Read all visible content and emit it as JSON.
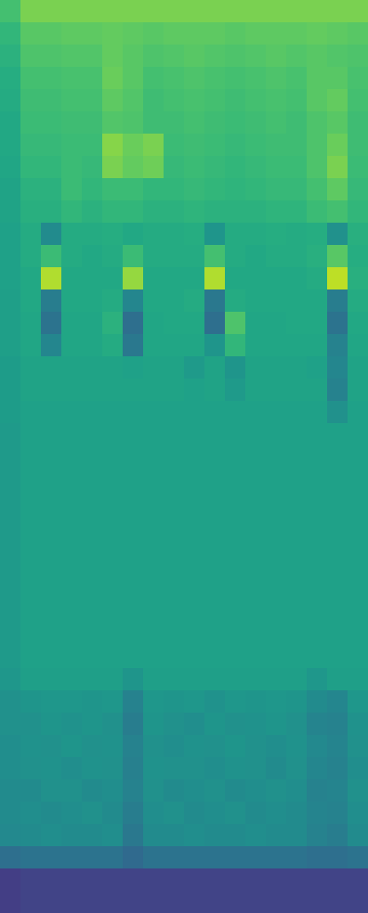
{
  "chart_data": {
    "type": "heatmap",
    "color": "viridis",
    "tick_labels": false,
    "zlim": [
      0,
      1
    ],
    "cells": [
      [
        0.7,
        0.8,
        0.8,
        0.8,
        0.8,
        0.8,
        0.8,
        0.8,
        0.8,
        0.8,
        0.8,
        0.8,
        0.8,
        0.8,
        0.8,
        0.8,
        0.8,
        0.8
      ],
      [
        0.66,
        0.74,
        0.74,
        0.75,
        0.75,
        0.76,
        0.75,
        0.74,
        0.75,
        0.75,
        0.75,
        0.74,
        0.75,
        0.75,
        0.75,
        0.76,
        0.75,
        0.74
      ],
      [
        0.64,
        0.72,
        0.72,
        0.73,
        0.73,
        0.76,
        0.74,
        0.72,
        0.73,
        0.74,
        0.73,
        0.72,
        0.73,
        0.74,
        0.73,
        0.74,
        0.73,
        0.72
      ],
      [
        0.62,
        0.7,
        0.7,
        0.71,
        0.71,
        0.77,
        0.74,
        0.7,
        0.71,
        0.72,
        0.71,
        0.7,
        0.71,
        0.72,
        0.71,
        0.74,
        0.74,
        0.71
      ],
      [
        0.61,
        0.69,
        0.69,
        0.7,
        0.7,
        0.75,
        0.73,
        0.69,
        0.7,
        0.71,
        0.7,
        0.69,
        0.7,
        0.71,
        0.7,
        0.74,
        0.76,
        0.7
      ],
      [
        0.6,
        0.68,
        0.68,
        0.69,
        0.69,
        0.73,
        0.72,
        0.69,
        0.69,
        0.7,
        0.69,
        0.68,
        0.69,
        0.7,
        0.69,
        0.72,
        0.74,
        0.69
      ],
      [
        0.6,
        0.67,
        0.67,
        0.68,
        0.68,
        0.82,
        0.77,
        0.8,
        0.68,
        0.69,
        0.68,
        0.67,
        0.68,
        0.69,
        0.69,
        0.72,
        0.77,
        0.69
      ],
      [
        0.59,
        0.66,
        0.66,
        0.68,
        0.67,
        0.8,
        0.76,
        0.78,
        0.67,
        0.68,
        0.67,
        0.66,
        0.67,
        0.68,
        0.68,
        0.72,
        0.8,
        0.68
      ],
      [
        0.58,
        0.64,
        0.64,
        0.68,
        0.66,
        0.68,
        0.68,
        0.66,
        0.66,
        0.67,
        0.66,
        0.65,
        0.66,
        0.67,
        0.67,
        0.7,
        0.75,
        0.67
      ],
      [
        0.58,
        0.63,
        0.63,
        0.66,
        0.64,
        0.66,
        0.66,
        0.64,
        0.64,
        0.65,
        0.64,
        0.64,
        0.64,
        0.65,
        0.65,
        0.68,
        0.7,
        0.66
      ],
      [
        0.57,
        0.61,
        0.48,
        0.61,
        0.61,
        0.62,
        0.6,
        0.61,
        0.61,
        0.62,
        0.52,
        0.61,
        0.61,
        0.62,
        0.61,
        0.62,
        0.5,
        0.63
      ],
      [
        0.57,
        0.61,
        0.68,
        0.61,
        0.6,
        0.61,
        0.68,
        0.61,
        0.61,
        0.61,
        0.7,
        0.61,
        0.6,
        0.61,
        0.61,
        0.63,
        0.74,
        0.62
      ],
      [
        0.57,
        0.6,
        0.88,
        0.6,
        0.6,
        0.6,
        0.84,
        0.6,
        0.6,
        0.6,
        0.88,
        0.6,
        0.6,
        0.6,
        0.6,
        0.61,
        0.9,
        0.63
      ],
      [
        0.56,
        0.6,
        0.42,
        0.6,
        0.6,
        0.61,
        0.46,
        0.6,
        0.6,
        0.61,
        0.4,
        0.61,
        0.6,
        0.6,
        0.6,
        0.6,
        0.42,
        0.61
      ],
      [
        0.56,
        0.59,
        0.38,
        0.59,
        0.59,
        0.64,
        0.36,
        0.59,
        0.6,
        0.6,
        0.36,
        0.72,
        0.59,
        0.59,
        0.6,
        0.6,
        0.38,
        0.6
      ],
      [
        0.56,
        0.59,
        0.46,
        0.59,
        0.59,
        0.61,
        0.4,
        0.59,
        0.59,
        0.59,
        0.52,
        0.66,
        0.59,
        0.59,
        0.59,
        0.59,
        0.44,
        0.59
      ],
      [
        0.55,
        0.58,
        0.58,
        0.58,
        0.58,
        0.58,
        0.57,
        0.58,
        0.58,
        0.54,
        0.58,
        0.52,
        0.58,
        0.58,
        0.58,
        0.57,
        0.46,
        0.58
      ],
      [
        0.55,
        0.58,
        0.58,
        0.58,
        0.58,
        0.58,
        0.58,
        0.58,
        0.58,
        0.57,
        0.58,
        0.54,
        0.58,
        0.58,
        0.58,
        0.58,
        0.44,
        0.58
      ],
      [
        0.55,
        0.57,
        0.57,
        0.57,
        0.57,
        0.57,
        0.57,
        0.57,
        0.57,
        0.57,
        0.57,
        0.57,
        0.57,
        0.57,
        0.57,
        0.57,
        0.5,
        0.57
      ],
      [
        0.54,
        0.57,
        0.57,
        0.57,
        0.57,
        0.57,
        0.57,
        0.57,
        0.57,
        0.57,
        0.57,
        0.57,
        0.57,
        0.57,
        0.57,
        0.57,
        0.57,
        0.57
      ],
      [
        0.54,
        0.57,
        0.57,
        0.57,
        0.57,
        0.57,
        0.57,
        0.57,
        0.57,
        0.57,
        0.57,
        0.57,
        0.57,
        0.57,
        0.57,
        0.57,
        0.57,
        0.57
      ],
      [
        0.54,
        0.57,
        0.57,
        0.57,
        0.57,
        0.57,
        0.57,
        0.57,
        0.57,
        0.57,
        0.57,
        0.57,
        0.57,
        0.57,
        0.57,
        0.57,
        0.57,
        0.57
      ],
      [
        0.54,
        0.57,
        0.57,
        0.57,
        0.57,
        0.57,
        0.57,
        0.57,
        0.57,
        0.57,
        0.57,
        0.57,
        0.57,
        0.57,
        0.57,
        0.57,
        0.57,
        0.57
      ],
      [
        0.54,
        0.57,
        0.57,
        0.57,
        0.57,
        0.57,
        0.57,
        0.57,
        0.57,
        0.57,
        0.57,
        0.57,
        0.57,
        0.57,
        0.57,
        0.57,
        0.57,
        0.57
      ],
      [
        0.54,
        0.57,
        0.57,
        0.57,
        0.57,
        0.57,
        0.57,
        0.57,
        0.57,
        0.57,
        0.57,
        0.57,
        0.57,
        0.57,
        0.57,
        0.57,
        0.57,
        0.57
      ],
      [
        0.54,
        0.57,
        0.57,
        0.57,
        0.57,
        0.57,
        0.57,
        0.57,
        0.57,
        0.57,
        0.57,
        0.57,
        0.57,
        0.57,
        0.57,
        0.57,
        0.57,
        0.57
      ],
      [
        0.54,
        0.57,
        0.57,
        0.57,
        0.57,
        0.57,
        0.57,
        0.57,
        0.57,
        0.57,
        0.57,
        0.57,
        0.57,
        0.57,
        0.57,
        0.57,
        0.57,
        0.57
      ],
      [
        0.54,
        0.57,
        0.57,
        0.57,
        0.57,
        0.57,
        0.57,
        0.57,
        0.57,
        0.57,
        0.57,
        0.57,
        0.57,
        0.57,
        0.57,
        0.57,
        0.57,
        0.57
      ],
      [
        0.54,
        0.57,
        0.57,
        0.57,
        0.57,
        0.57,
        0.57,
        0.57,
        0.57,
        0.57,
        0.57,
        0.57,
        0.57,
        0.57,
        0.57,
        0.57,
        0.57,
        0.57
      ],
      [
        0.54,
        0.57,
        0.57,
        0.57,
        0.57,
        0.57,
        0.57,
        0.57,
        0.57,
        0.57,
        0.57,
        0.57,
        0.57,
        0.57,
        0.57,
        0.57,
        0.57,
        0.57
      ],
      [
        0.53,
        0.56,
        0.56,
        0.56,
        0.56,
        0.56,
        0.52,
        0.56,
        0.56,
        0.56,
        0.56,
        0.56,
        0.56,
        0.56,
        0.56,
        0.53,
        0.56,
        0.56
      ],
      [
        0.5,
        0.52,
        0.53,
        0.53,
        0.52,
        0.53,
        0.44,
        0.53,
        0.52,
        0.53,
        0.51,
        0.53,
        0.52,
        0.53,
        0.52,
        0.48,
        0.46,
        0.53
      ],
      [
        0.5,
        0.5,
        0.52,
        0.51,
        0.52,
        0.5,
        0.42,
        0.52,
        0.5,
        0.49,
        0.52,
        0.5,
        0.51,
        0.52,
        0.5,
        0.45,
        0.44,
        0.51
      ],
      [
        0.49,
        0.51,
        0.5,
        0.52,
        0.5,
        0.51,
        0.44,
        0.5,
        0.49,
        0.51,
        0.5,
        0.52,
        0.5,
        0.49,
        0.51,
        0.47,
        0.45,
        0.5
      ],
      [
        0.49,
        0.5,
        0.51,
        0.49,
        0.51,
        0.5,
        0.43,
        0.51,
        0.5,
        0.5,
        0.49,
        0.51,
        0.5,
        0.48,
        0.5,
        0.46,
        0.44,
        0.49
      ],
      [
        0.48,
        0.48,
        0.5,
        0.5,
        0.48,
        0.49,
        0.44,
        0.5,
        0.48,
        0.49,
        0.5,
        0.48,
        0.49,
        0.5,
        0.49,
        0.44,
        0.45,
        0.5
      ],
      [
        0.48,
        0.49,
        0.48,
        0.49,
        0.5,
        0.48,
        0.42,
        0.49,
        0.5,
        0.48,
        0.49,
        0.5,
        0.48,
        0.49,
        0.48,
        0.45,
        0.44,
        0.49
      ],
      [
        0.47,
        0.48,
        0.49,
        0.48,
        0.48,
        0.49,
        0.4,
        0.48,
        0.48,
        0.49,
        0.48,
        0.48,
        0.49,
        0.48,
        0.48,
        0.44,
        0.42,
        0.48
      ],
      [
        0.36,
        0.38,
        0.38,
        0.38,
        0.38,
        0.38,
        0.34,
        0.38,
        0.38,
        0.38,
        0.38,
        0.38,
        0.38,
        0.38,
        0.38,
        0.36,
        0.36,
        0.38
      ],
      [
        0.18,
        0.2,
        0.2,
        0.2,
        0.2,
        0.2,
        0.2,
        0.2,
        0.2,
        0.2,
        0.2,
        0.2,
        0.2,
        0.2,
        0.2,
        0.2,
        0.2,
        0.2
      ],
      [
        0.18,
        0.2,
        0.2,
        0.2,
        0.2,
        0.2,
        0.2,
        0.2,
        0.2,
        0.2,
        0.2,
        0.2,
        0.2,
        0.2,
        0.2,
        0.2,
        0.2,
        0.2
      ]
    ]
  }
}
